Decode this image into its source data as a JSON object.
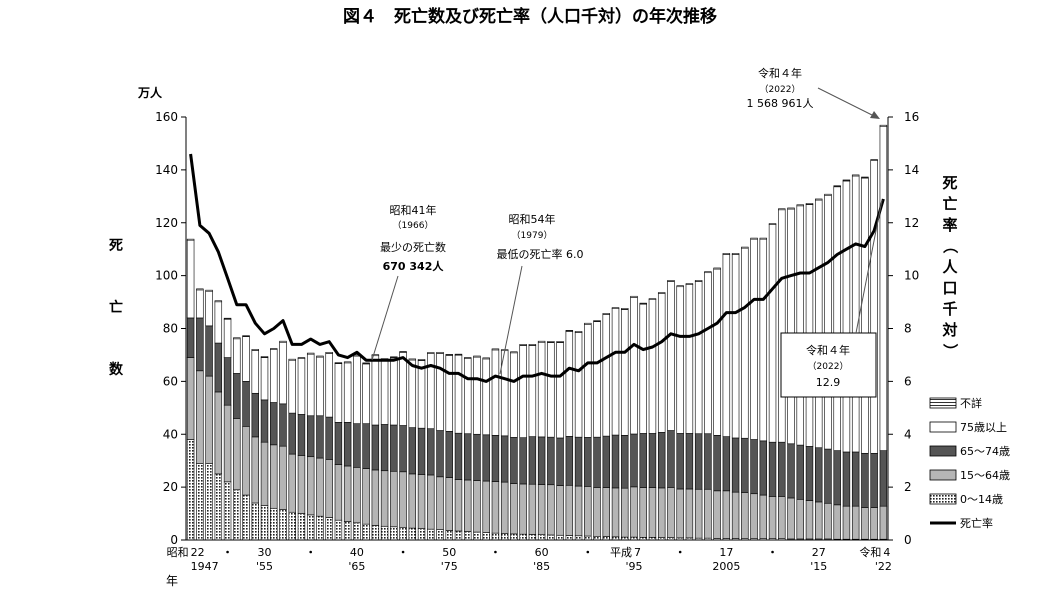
{
  "chart_data": {
    "type": "bar",
    "title": "図４　死亡数及び死亡率（人口千対）の年次推移",
    "left_unit": "万人",
    "left_label": "死亡数",
    "right_label": "死亡率（人口千対）",
    "ylim_left": [
      0,
      160
    ],
    "ylim_right": [
      0,
      16
    ],
    "yticks_left": [
      "0",
      "20",
      "40",
      "60",
      "80",
      "100",
      "120",
      "140",
      "160"
    ],
    "yticks_right": [
      "0",
      "2",
      "4",
      "6",
      "8",
      "10",
      "12",
      "14",
      "16"
    ],
    "year_axis_label": "年",
    "x_era_labels": [
      {
        "era": "昭和",
        "ja": "22",
        "ad": "1947",
        "year": 1947
      },
      {
        "era": "",
        "ja": "30",
        "ad": "'55",
        "year": 1955
      },
      {
        "era": "",
        "ja": "40",
        "ad": "'65",
        "year": 1965
      },
      {
        "era": "",
        "ja": "50",
        "ad": "'75",
        "year": 1975
      },
      {
        "era": "",
        "ja": "60",
        "ad": "'85",
        "year": 1985
      },
      {
        "era": "平成",
        "ja": "7",
        "ad": "'95",
        "year": 1995
      },
      {
        "era": "",
        "ja": "17",
        "ad": "2005",
        "year": 2005
      },
      {
        "era": "",
        "ja": "27",
        "ad": "'15",
        "year": 2015
      },
      {
        "era": "令和",
        "ja": "4",
        "ad": "'22",
        "year": 2022
      }
    ],
    "x_dots": [
      1951,
      1960,
      1970,
      1980,
      1990,
      2000,
      2010
    ],
    "years": [
      1947,
      1948,
      1949,
      1950,
      1951,
      1952,
      1953,
      1954,
      1955,
      1956,
      1957,
      1958,
      1959,
      1960,
      1961,
      1962,
      1963,
      1964,
      1965,
      1966,
      1967,
      1968,
      1969,
      1970,
      1971,
      1972,
      1973,
      1974,
      1975,
      1976,
      1977,
      1978,
      1979,
      1980,
      1981,
      1982,
      1983,
      1984,
      1985,
      1986,
      1987,
      1988,
      1989,
      1990,
      1991,
      1992,
      1993,
      1994,
      1995,
      1996,
      1997,
      1998,
      1999,
      2000,
      2001,
      2002,
      2003,
      2004,
      2005,
      2006,
      2007,
      2008,
      2009,
      2010,
      2011,
      2012,
      2013,
      2014,
      2015,
      2016,
      2017,
      2018,
      2019,
      2020,
      2021,
      2022
    ],
    "series": [
      {
        "name": "不詳",
        "key": "unknown",
        "pattern": "hatch"
      },
      {
        "name": "75歳以上",
        "key": "age75",
        "pattern": "white"
      },
      {
        "name": "65～74歳",
        "key": "age65",
        "pattern": "dark"
      },
      {
        "name": "15～64歳",
        "key": "age15",
        "pattern": "grey"
      },
      {
        "name": "0～14歳",
        "key": "age0",
        "pattern": "dots"
      },
      {
        "name": "死亡率",
        "key": "rate",
        "pattern": "line"
      }
    ],
    "totals": [
      113.8,
      95.0,
      94.5,
      90.5,
      83.9,
      76.5,
      77.3,
      72.1,
      69.4,
      72.4,
      75.2,
      68.4,
      69.0,
      70.7,
      69.6,
      71.0,
      67.1,
      67.4,
      70.0,
      67.0,
      70.1,
      68.6,
      69.3,
      71.3,
      68.5,
      68.3,
      70.9,
      71.0,
      70.2,
      70.3,
      69.0,
      69.6,
      68.9,
      72.3,
      72.0,
      71.2,
      74.0,
      74.0,
      75.2,
      75.1,
      75.1,
      79.3,
      78.9,
      82.0,
      83.0,
      85.7,
      87.9,
      87.6,
      92.2,
      89.6,
      91.3,
      93.6,
      98.2,
      96.2,
      97.0,
      98.2,
      101.5,
      102.9,
      108.4,
      108.4,
      110.8,
      114.2,
      114.2,
      119.7,
      125.3,
      125.6,
      126.8,
      127.3,
      129.0,
      130.8,
      134.0,
      136.2,
      138.1,
      137.3,
      143.9,
      156.9
    ],
    "age0": [
      38,
      29,
      29,
      25,
      22,
      19,
      17,
      14,
      13,
      12,
      11.5,
      10.5,
      10,
      9.5,
      9,
      8.5,
      7.5,
      7,
      6.5,
      6,
      5.5,
      5.2,
      5,
      4.8,
      4.5,
      4.3,
      4.1,
      3.9,
      3.6,
      3.4,
      3.2,
      3,
      2.8,
      2.6,
      2.4,
      2.3,
      2.2,
      2.1,
      2,
      1.9,
      1.8,
      1.7,
      1.6,
      1.5,
      1.4,
      1.3,
      1.2,
      1.1,
      1.1,
      1,
      1,
      0.9,
      0.9,
      0.8,
      0.8,
      0.7,
      0.7,
      0.6,
      0.6,
      0.6,
      0.5,
      0.5,
      0.5,
      0.5,
      0.5,
      0.4,
      0.4,
      0.4,
      0.4,
      0.4,
      0.3,
      0.3,
      0.3,
      0.3,
      0.3,
      0.3
    ],
    "age15": [
      31,
      35,
      33,
      31,
      29,
      27,
      26,
      25,
      24,
      24,
      24,
      22,
      22,
      22,
      22,
      22,
      21,
      21,
      21,
      21,
      21,
      21,
      21,
      21,
      20.5,
      20.5,
      20.5,
      20,
      20,
      19.5,
      19.5,
      19.5,
      19.5,
      19.5,
      19.5,
      19,
      19,
      19,
      19,
      19,
      18.8,
      19,
      18.8,
      18.8,
      18.5,
      18.5,
      18.5,
      18.5,
      19,
      18.8,
      18.8,
      18.8,
      19,
      18.5,
      18.5,
      18.5,
      18.5,
      18,
      18,
      17.5,
      17.5,
      17,
      16.5,
      16,
      16,
      15.5,
      15,
      14.5,
      14,
      13.5,
      13,
      12.5,
      12.5,
      12,
      12,
      12.5
    ],
    "age65": [
      15,
      20,
      19,
      18.5,
      18,
      17,
      17,
      16.5,
      16,
      16,
      16,
      15.5,
      15.5,
      15.5,
      16,
      16,
      16,
      16.5,
      16.5,
      17,
      17,
      17.5,
      17.5,
      17.5,
      17.5,
      17.5,
      17.5,
      17.5,
      17.5,
      17.5,
      17.5,
      17.5,
      17.5,
      17.5,
      17.5,
      17.5,
      17.5,
      18,
      18,
      18,
      18,
      18.5,
      18.5,
      18.5,
      19,
      19.5,
      20,
      20,
      20,
      20.5,
      20.5,
      21,
      21.5,
      21,
      21,
      21,
      21,
      21,
      20.5,
      20.5,
      20.5,
      20.5,
      20.5,
      20.5,
      20.5,
      20.5,
      20.5,
      20.5,
      20.5,
      20.5,
      20.5,
      20.5,
      20.5,
      20.5,
      20.5,
      21
    ],
    "rate": [
      14.6,
      11.9,
      11.6,
      10.9,
      9.9,
      8.9,
      8.9,
      8.2,
      7.8,
      8.0,
      8.3,
      7.4,
      7.4,
      7.6,
      7.4,
      7.5,
      7.0,
      6.9,
      7.1,
      6.8,
      6.8,
      6.8,
      6.8,
      6.9,
      6.6,
      6.5,
      6.6,
      6.5,
      6.3,
      6.3,
      6.1,
      6.1,
      6.0,
      6.2,
      6.1,
      6.0,
      6.2,
      6.2,
      6.3,
      6.2,
      6.2,
      6.5,
      6.4,
      6.7,
      6.7,
      6.9,
      7.1,
      7.1,
      7.4,
      7.2,
      7.3,
      7.5,
      7.8,
      7.7,
      7.7,
      7.8,
      8.0,
      8.2,
      8.6,
      8.6,
      8.8,
      9.1,
      9.1,
      9.5,
      9.9,
      10.0,
      10.1,
      10.1,
      10.3,
      10.5,
      10.8,
      11.0,
      11.2,
      11.1,
      11.7,
      12.9
    ],
    "annotations": {
      "a1966": {
        "l1": "昭和41年",
        "l2": "（1966）",
        "l3": "最少の死亡数",
        "l4": "670 342人"
      },
      "a1979": {
        "l1": "昭和54年",
        "l2": "（1979）",
        "l3": "最低の死亡率 6.0"
      },
      "a2022count": {
        "l1": "令和４年",
        "l2": "（2022）",
        "l3": "1 568 961人"
      },
      "a2022rate": {
        "l1": "令和４年",
        "l2": "（2022）",
        "l3": "12.9"
      }
    }
  }
}
